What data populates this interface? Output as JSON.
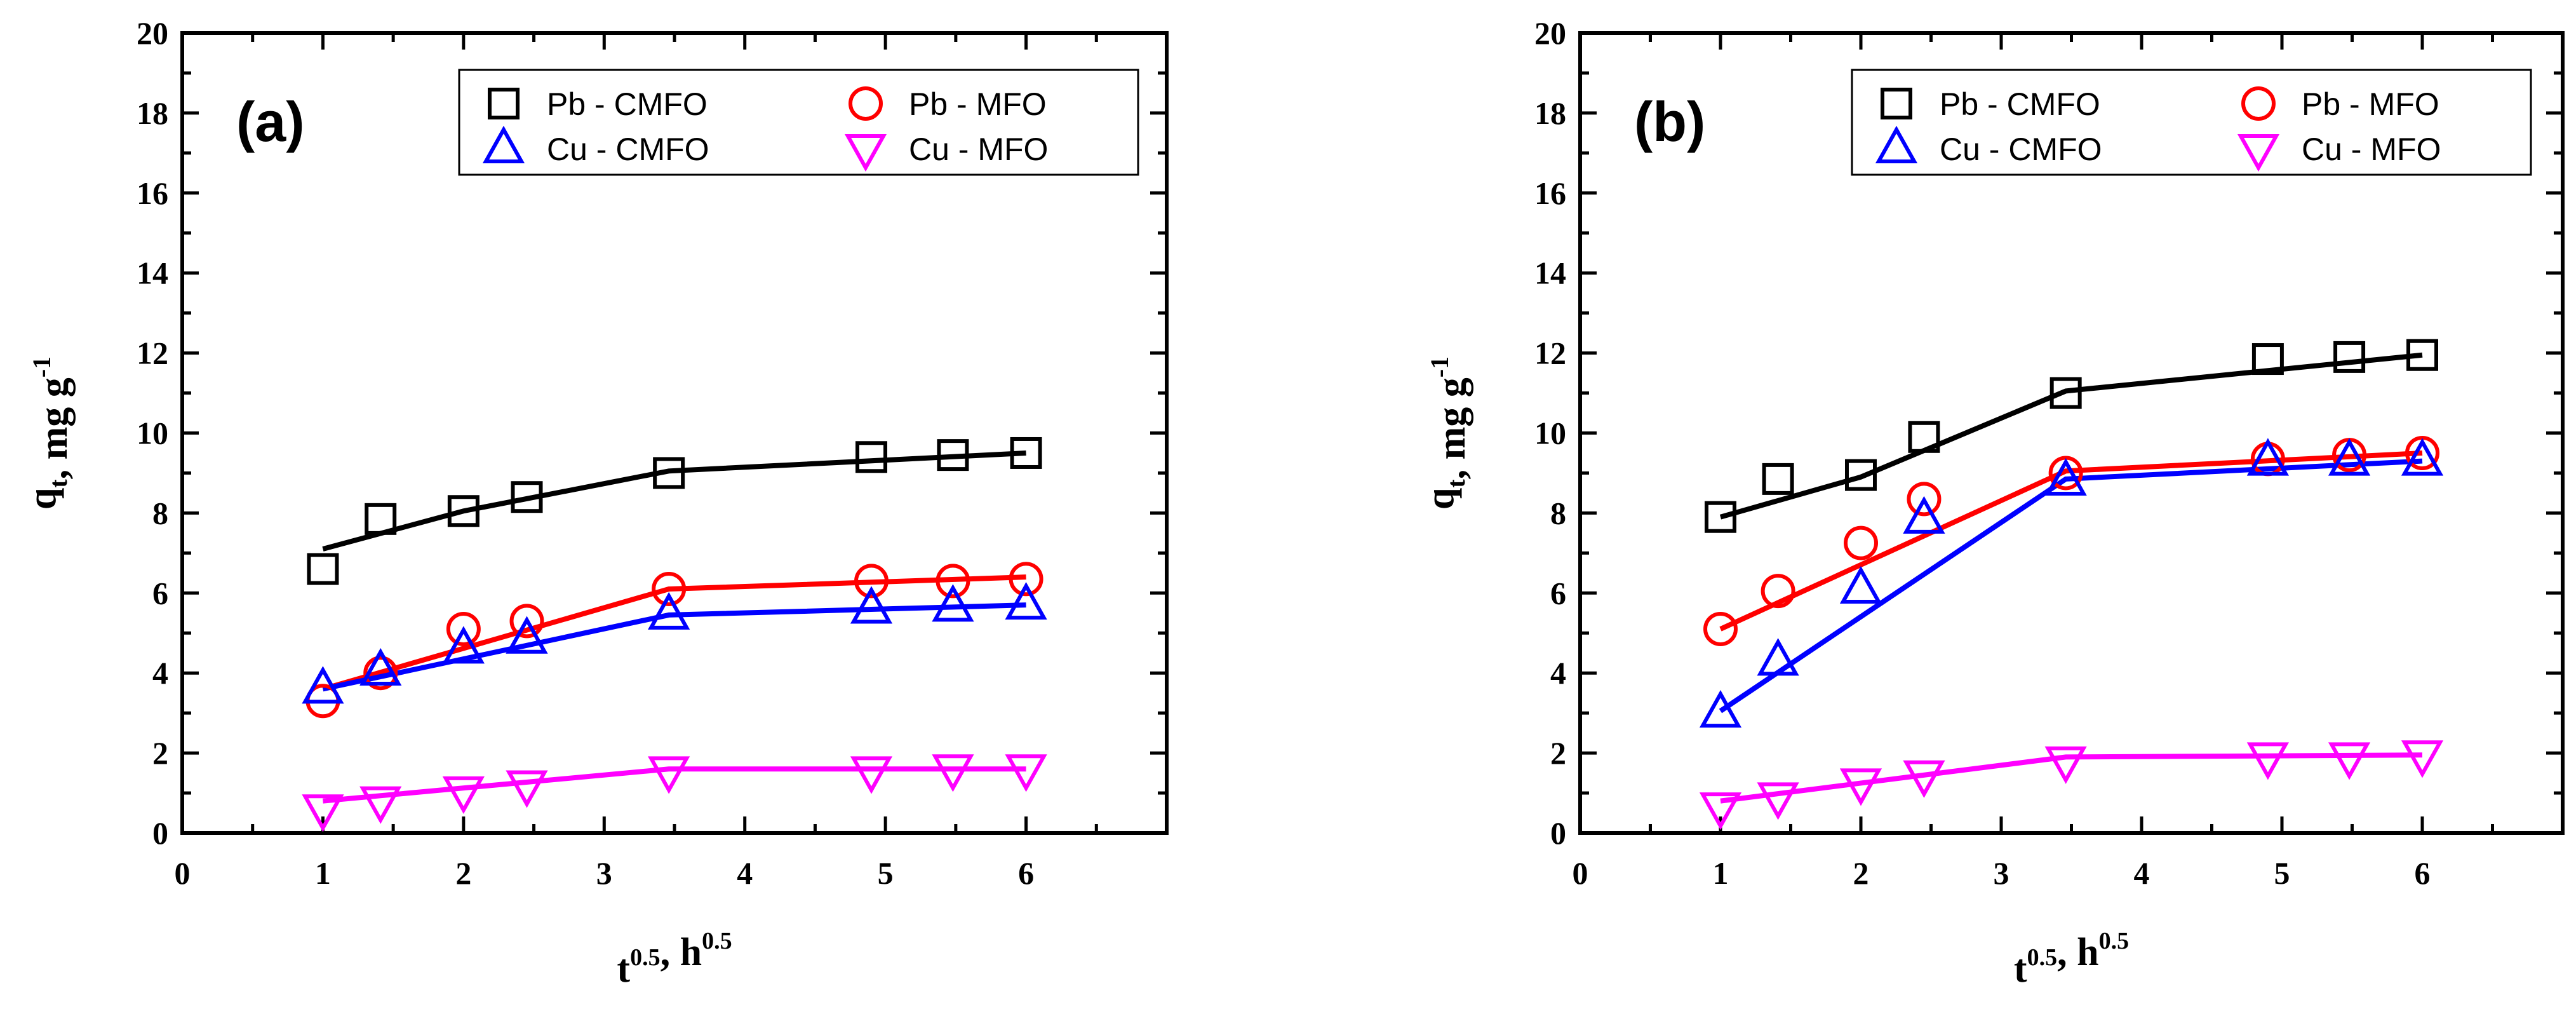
{
  "chart_data": [
    {
      "type": "line",
      "panel_label": "(a)",
      "xlim": [
        0,
        7
      ],
      "ylim": [
        0,
        20
      ],
      "xticks": [
        0,
        1,
        2,
        3,
        4,
        5,
        6
      ],
      "yticks": [
        0,
        2,
        4,
        6,
        8,
        10,
        12,
        14,
        16,
        18,
        20
      ],
      "xlabel": "t^0.5, h^0.5",
      "ylabel": "q_t, mg g^-1",
      "legend_position": "top-right",
      "series": [
        {
          "name": "Pb - CMFO",
          "marker": "square",
          "color": "#000000",
          "x": [
            1.0,
            1.41,
            2.0,
            2.45,
            3.46,
            4.9,
            5.48,
            6.0
          ],
          "values": [
            6.6,
            7.85,
            8.05,
            8.4,
            9.0,
            9.4,
            9.45,
            9.5
          ],
          "fit": {
            "x": [
              1.0,
              2.0,
              3.46,
              6.0
            ],
            "y": [
              7.1,
              8.05,
              9.05,
              9.5
            ]
          }
        },
        {
          "name": "Pb - MFO",
          "marker": "circle",
          "color": "#ff0000",
          "x": [
            1.0,
            1.41,
            2.0,
            2.45,
            3.46,
            4.9,
            5.48,
            6.0
          ],
          "values": [
            3.3,
            4.0,
            5.1,
            5.3,
            6.1,
            6.3,
            6.3,
            6.35
          ],
          "fit": {
            "x": [
              1.0,
              3.46,
              6.0
            ],
            "y": [
              3.6,
              6.1,
              6.4
            ]
          }
        },
        {
          "name": "Cu - CMFO",
          "marker": "triangle-up",
          "color": "#0000ff",
          "x": [
            1.0,
            1.41,
            2.0,
            2.45,
            3.46,
            4.9,
            5.48,
            6.0
          ],
          "values": [
            3.6,
            4.05,
            4.6,
            4.85,
            5.45,
            5.6,
            5.65,
            5.7
          ],
          "fit": {
            "x": [
              1.0,
              3.46,
              6.0
            ],
            "y": [
              3.6,
              5.45,
              5.7
            ]
          }
        },
        {
          "name": "Cu - MFO",
          "marker": "triangle-down",
          "color": "#ff00ff",
          "x": [
            1.0,
            1.41,
            2.0,
            2.45,
            3.46,
            4.9,
            5.48,
            6.0
          ],
          "values": [
            0.6,
            0.8,
            1.05,
            1.2,
            1.55,
            1.55,
            1.6,
            1.6
          ],
          "fit": {
            "x": [
              1.0,
              3.46,
              6.0
            ],
            "y": [
              0.8,
              1.6,
              1.6
            ]
          }
        }
      ]
    },
    {
      "type": "line",
      "panel_label": "(b)",
      "xlim": [
        0,
        7
      ],
      "ylim": [
        0,
        20
      ],
      "xticks": [
        0,
        1,
        2,
        3,
        4,
        5,
        6
      ],
      "yticks": [
        0,
        2,
        4,
        6,
        8,
        10,
        12,
        14,
        16,
        18,
        20
      ],
      "xlabel": "t^0.5, h^0.5",
      "ylabel": "q_t, mg g^-1",
      "legend_position": "top-right",
      "series": [
        {
          "name": "Pb - CMFO",
          "marker": "square",
          "color": "#000000",
          "x": [
            1.0,
            1.41,
            2.0,
            2.45,
            3.46,
            4.9,
            5.48,
            6.0
          ],
          "values": [
            7.9,
            8.85,
            8.95,
            9.9,
            11.0,
            11.85,
            11.9,
            11.95
          ],
          "fit": {
            "x": [
              1.0,
              2.0,
              3.46,
              6.0
            ],
            "y": [
              7.9,
              8.9,
              11.05,
              11.95
            ]
          }
        },
        {
          "name": "Pb - MFO",
          "marker": "circle",
          "color": "#ff0000",
          "x": [
            1.0,
            1.41,
            2.0,
            2.45,
            3.46,
            4.9,
            5.48,
            6.0
          ],
          "values": [
            5.1,
            6.05,
            7.25,
            8.35,
            9.0,
            9.35,
            9.45,
            9.5
          ],
          "fit": {
            "x": [
              1.0,
              3.46,
              6.0
            ],
            "y": [
              5.1,
              9.05,
              9.5
            ]
          }
        },
        {
          "name": "Cu - CMFO",
          "marker": "triangle-up",
          "color": "#0000ff",
          "x": [
            1.0,
            1.41,
            2.0,
            2.45,
            3.46,
            4.9,
            5.48,
            6.0
          ],
          "values": [
            3.0,
            4.3,
            6.1,
            7.85,
            8.8,
            9.3,
            9.3,
            9.3
          ],
          "fit": {
            "x": [
              1.0,
              3.46,
              6.0
            ],
            "y": [
              3.05,
              8.85,
              9.3
            ]
          }
        },
        {
          "name": "Cu - MFO",
          "marker": "triangle-down",
          "color": "#ff00ff",
          "x": [
            1.0,
            1.41,
            2.0,
            2.45,
            3.46,
            4.9,
            5.48,
            6.0
          ],
          "values": [
            0.65,
            0.9,
            1.25,
            1.45,
            1.8,
            1.9,
            1.9,
            1.95
          ],
          "fit": {
            "x": [
              1.0,
              3.46,
              6.0
            ],
            "y": [
              0.8,
              1.9,
              1.95
            ]
          }
        }
      ]
    }
  ]
}
